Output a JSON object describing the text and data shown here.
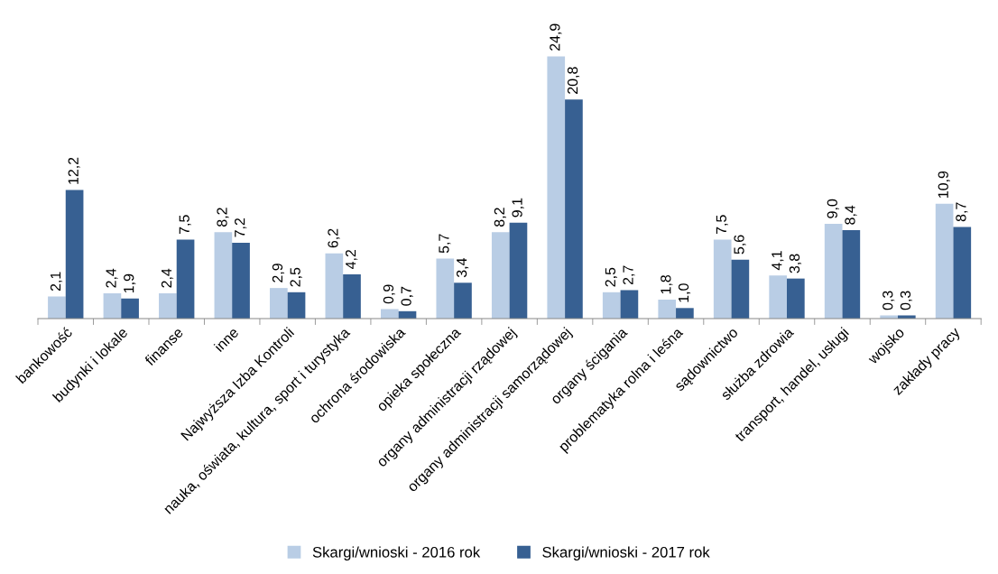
{
  "chart_data": {
    "type": "bar",
    "categories": [
      "bankowość",
      "budynki i lokale",
      "finanse",
      "inne",
      "Najwyższa Izba Kontroli",
      "nauka, oświata, kultura, sport i turystyka",
      "ochrona środowiska",
      "opieka społeczna",
      "organy administracji rządowej",
      "organy administracji samorządowej",
      "organy ścigania",
      "problematyka rolna i leśna",
      "sądownictwo",
      "służba zdrowia",
      "transport, handel, usługi",
      "wojsko",
      "zakłady pracy"
    ],
    "series": [
      {
        "name": "Skargi/wnioski - 2016 rok",
        "color": "#b9cde5",
        "values": [
          2.1,
          2.4,
          2.4,
          8.2,
          2.9,
          6.2,
          0.9,
          5.7,
          8.2,
          24.9,
          2.5,
          1.8,
          7.5,
          4.1,
          9.0,
          0.3,
          10.9
        ],
        "value_labels": [
          "2,1",
          "2,4",
          "2,4",
          "8,2",
          "2,9",
          "6,2",
          "0,9",
          "5,7",
          "8,2",
          "24,9",
          "2,5",
          "1,8",
          "7,5",
          "4,1",
          "9,0",
          "0,3",
          "10,9"
        ]
      },
      {
        "name": "Skargi/wnioski - 2017 rok",
        "color": "#376092",
        "values": [
          12.2,
          1.9,
          7.5,
          7.2,
          2.5,
          4.2,
          0.7,
          3.4,
          9.1,
          20.8,
          2.7,
          1.0,
          5.6,
          3.8,
          8.4,
          0.3,
          8.7
        ],
        "value_labels": [
          "12,2",
          "1,9",
          "7,5",
          "7,2",
          "2,5",
          "4,2",
          "0,7",
          "3,4",
          "9,1",
          "20,8",
          "2,7",
          "1,0",
          "5,6",
          "3,8",
          "8,4",
          "0,3",
          "8,7"
        ]
      }
    ],
    "legend": "bottom",
    "grid": false
  }
}
